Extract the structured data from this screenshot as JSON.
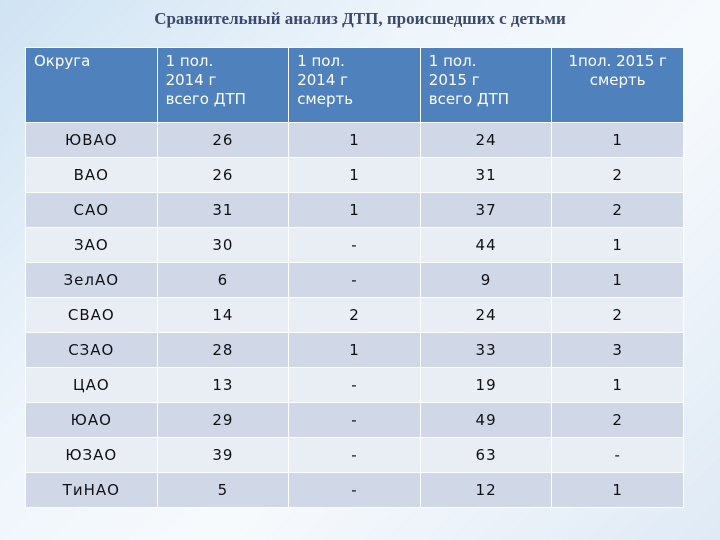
{
  "header": {
    "title": "Сравнительный анализ ДТП, происшедших с детьми"
  },
  "table": {
    "columns": [
      "Округа",
      "1 пол. 2014 г всего ДТП",
      "1 пол. 2014 г смерть",
      "1 пол. 2015 г всего ДТП",
      "1пол. 2015 г смерть"
    ],
    "rows": [
      [
        "ЮВАО",
        26,
        1,
        24,
        1
      ],
      [
        "ВАО",
        26,
        1,
        31,
        2
      ],
      [
        "САО",
        31,
        1,
        37,
        2
      ],
      [
        "ЗАО",
        30,
        "-",
        44,
        1
      ],
      [
        "ЗелАО",
        6,
        "-",
        9,
        1
      ],
      [
        "СВАО",
        14,
        2,
        24,
        2
      ],
      [
        "СЗАО",
        28,
        1,
        33,
        3
      ],
      [
        "ЦАО",
        13,
        "-",
        19,
        1
      ],
      [
        "ЮАО",
        29,
        "-",
        49,
        2
      ],
      [
        "ЮЗАО",
        39,
        "-",
        63,
        "-"
      ],
      [
        "ТиНАО",
        5,
        "-",
        12,
        1
      ]
    ]
  }
}
